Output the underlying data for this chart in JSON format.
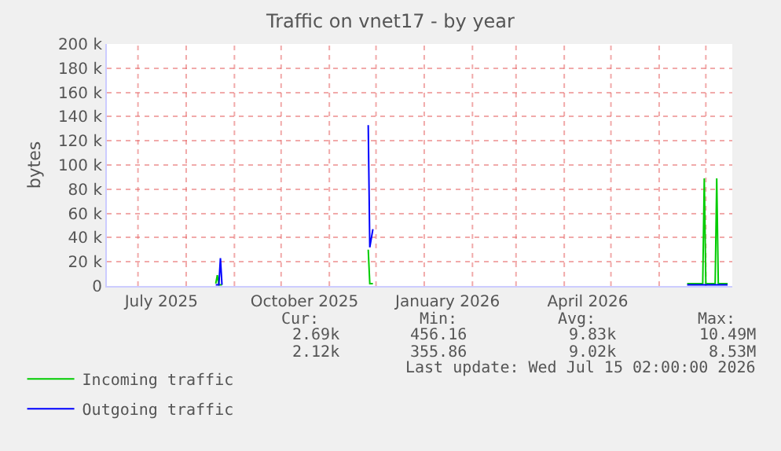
{
  "chart_data": {
    "type": "line",
    "title": "Traffic on vnet17 - by year",
    "ylabel": "bytes",
    "xlim": [
      "2025-06-11",
      "2026-07-18"
    ],
    "xticks": [
      {
        "value": "2025-07-01",
        "label": null
      },
      {
        "value": "2025-07-16",
        "label": "July 2025"
      },
      {
        "value": "2025-08-01",
        "label": null
      },
      {
        "value": "2025-09-01",
        "label": null
      },
      {
        "value": "2025-10-01",
        "label": null
      },
      {
        "value": "2025-10-16",
        "label": "October 2025"
      },
      {
        "value": "2025-11-01",
        "label": null
      },
      {
        "value": "2025-12-01",
        "label": null
      },
      {
        "value": "2026-01-01",
        "label": null
      },
      {
        "value": "2026-01-16",
        "label": "January 2026"
      },
      {
        "value": "2026-02-01",
        "label": null
      },
      {
        "value": "2026-03-01",
        "label": null
      },
      {
        "value": "2026-04-01",
        "label": null
      },
      {
        "value": "2026-04-16",
        "label": "April 2026"
      },
      {
        "value": "2026-05-01",
        "label": null
      },
      {
        "value": "2026-06-01",
        "label": null
      },
      {
        "value": "2026-07-01",
        "label": null
      }
    ],
    "ylim": [
      0,
      200000
    ],
    "yticks": [
      0,
      {
        "value": 20000,
        "label": "20 k"
      },
      {
        "value": 40000,
        "label": "40 k"
      },
      {
        "value": 60000,
        "label": "60 k"
      },
      {
        "value": 80000,
        "label": "80 k"
      },
      {
        "value": 100000,
        "label": "100 k"
      },
      {
        "value": 120000,
        "label": "120 k"
      },
      {
        "value": 140000,
        "label": "140 k"
      },
      {
        "value": 160000,
        "label": "160 k"
      },
      {
        "value": 180000,
        "label": "180 k"
      },
      {
        "value": 200000,
        "label": "200 k"
      }
    ],
    "grid": true,
    "legend": "bottom left",
    "marker": "none",
    "line_style": "solid",
    "series": [
      {
        "name": "Incoming traffic",
        "color": "#00cc00",
        "x": [
          "2025-08-20",
          "2025-08-21",
          "2025-08-22",
          "2025-08-24",
          "2025-08-25",
          "2025-11-26",
          "2025-11-27",
          "2025-11-29",
          "2025-11-30",
          "2026-06-19",
          "2026-06-29",
          "2026-06-30",
          "2026-07-01",
          "2026-07-07",
          "2026-07-08",
          "2026-07-09",
          "2026-07-15"
        ],
        "values": [
          2000,
          9000,
          1000,
          1000,
          null,
          30000,
          2000,
          2000,
          null,
          2000,
          2000,
          89000,
          2000,
          2000,
          89000,
          2000,
          2000
        ]
      },
      {
        "name": "Outgoing traffic",
        "color": "#0000ff",
        "x": [
          "2025-08-20",
          "2025-08-22",
          "2025-08-23",
          "2025-08-24",
          "2025-08-25",
          "2025-11-26",
          "2025-11-27",
          "2025-11-29",
          "2025-11-30",
          "2026-06-19",
          "2026-07-15"
        ],
        "values": [
          1000,
          1000,
          23000,
          1000,
          null,
          133000,
          32000,
          47000,
          null,
          1000,
          1000
        ]
      }
    ],
    "annotations": [
      "Cur:",
      "Min:",
      "Avg:",
      "Max:",
      "2.69k",
      "456.16",
      "9.83k",
      "10.49M",
      "2.12k",
      "355.86",
      "9.02k",
      "8.53M",
      "Last update: Wed Jul 15 02:00:00 2026"
    ]
  }
}
